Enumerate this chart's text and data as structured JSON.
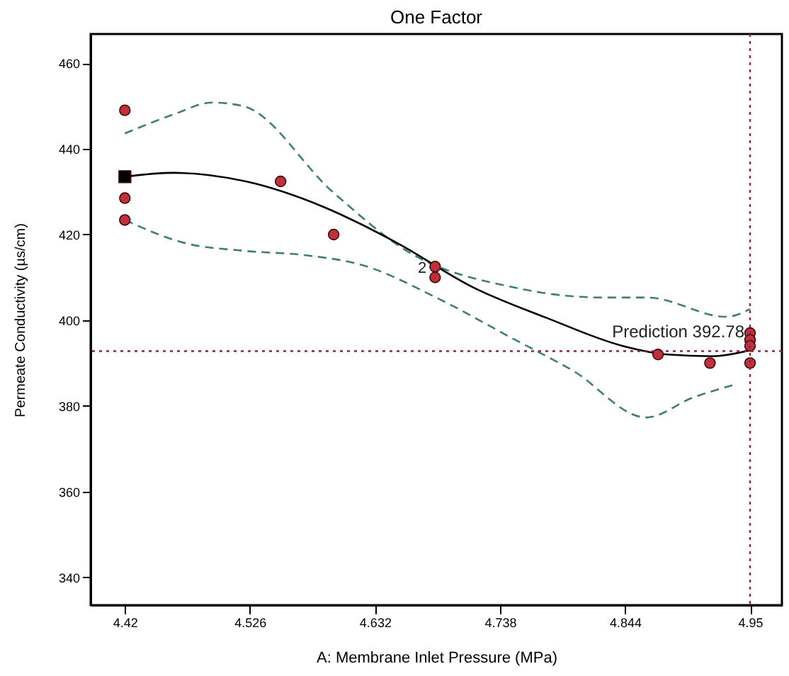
{
  "chart_data": {
    "type": "scatter",
    "title": "One Factor",
    "xlabel": "A: Membrane Inlet Pressure (MPa)",
    "ylabel": "Permeate Conductivity (µs/cm)",
    "xlim": [
      4.391,
      4.977
    ],
    "xticks": [
      4.42,
      4.526,
      4.632,
      4.738,
      4.844,
      4.95
    ],
    "ylim": [
      333.5,
      466.8
    ],
    "yticks": [
      340,
      360,
      380,
      400,
      420,
      440,
      460
    ],
    "grid": false,
    "series": [
      {
        "type": "line",
        "color": "#3d7f78",
        "line_style": "dashed",
        "marker": "none",
        "x": [
          4.42,
          4.461,
          4.494,
          4.52,
          4.596,
          4.66,
          4.749,
          4.825,
          4.863,
          4.93,
          4.95
        ],
        "values": [
          443.6,
          448,
          450.8,
          450,
          430,
          416,
          407.7,
          405.3,
          405.3,
          400.8,
          402.6
        ]
      },
      {
        "type": "line",
        "color": "#3d7f78",
        "line_style": "dashed",
        "marker": "none",
        "x": [
          4.42,
          4.471,
          4.521,
          4.572,
          4.622,
          4.686,
          4.749,
          4.8,
          4.862,
          4.902,
          4.935
        ],
        "values": [
          423.4,
          418,
          416.2,
          415.2,
          412.8,
          405,
          395.7,
          388.2,
          377.3,
          382,
          384.8
        ]
      },
      {
        "type": "line",
        "color": "#000000",
        "line_style": "solid",
        "marker": "none",
        "x": [
          4.42,
          4.461,
          4.524,
          4.588,
          4.651,
          4.715,
          4.778,
          4.842,
          4.88,
          4.918,
          4.95
        ],
        "values": [
          433.5,
          434.4,
          432.3,
          426.5,
          418,
          407.7,
          400.5,
          394,
          392,
          391.6,
          393
        ]
      },
      {
        "type": "scatter",
        "color": "#000000",
        "marker": "square",
        "x": [
          4.42
        ],
        "values": [
          433.5
        ]
      },
      {
        "color": "#c0303a",
        "marker": "circle",
        "x": [
          4.42,
          4.42,
          4.42,
          4.552,
          4.597,
          4.683,
          4.683,
          4.872,
          4.916,
          4.95,
          4.95,
          4.95,
          4.95
        ],
        "values": [
          449,
          428.5,
          423.4,
          432.4,
          420,
          412.5,
          410,
          392,
          390,
          397,
          395.4,
          394,
          390
        ]
      }
    ],
    "ref_lines": [
      {
        "axis": "x",
        "value": 4.95,
        "color": "#8b2252",
        "line_style": "dotted"
      },
      {
        "axis": "y",
        "value": 392.78,
        "color": "#8b2252",
        "line_style": "dotted"
      }
    ],
    "annotations": [
      {
        "text": "2",
        "x": 4.683,
        "y": 412
      },
      {
        "text": "Prediction  392.78",
        "x": 4.95,
        "y": 392.78
      }
    ]
  }
}
